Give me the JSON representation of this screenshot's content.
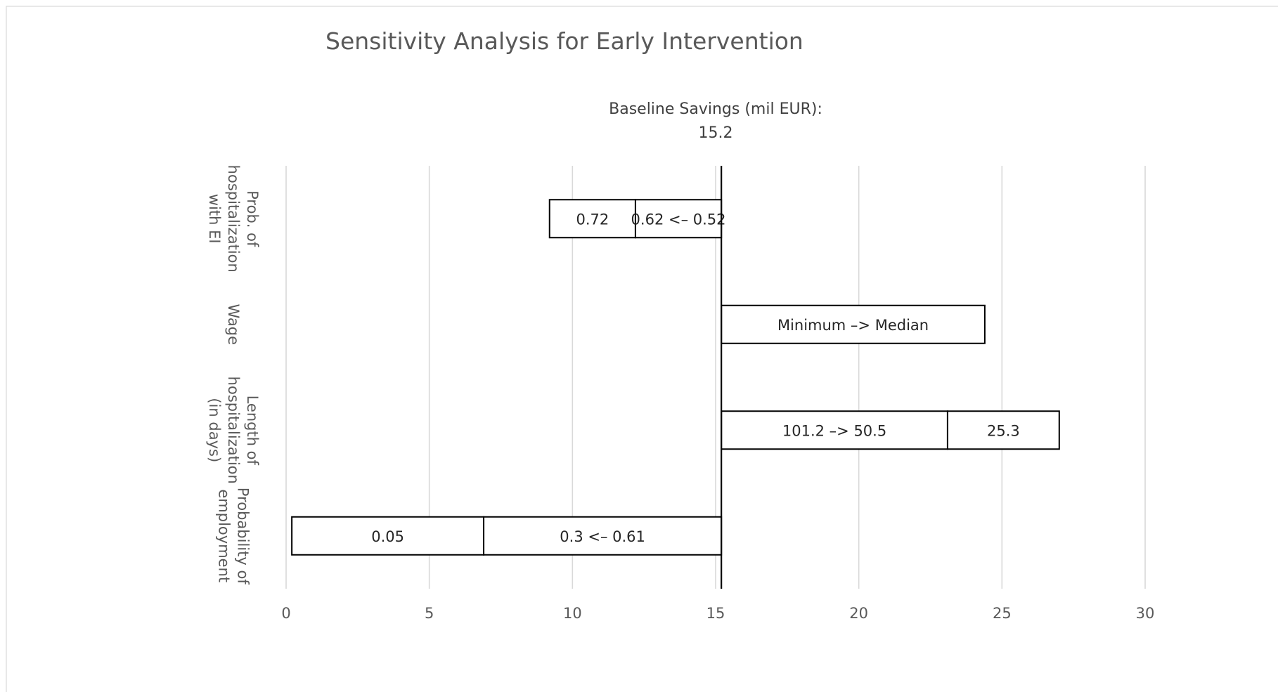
{
  "chart_data": {
    "type": "bar",
    "orientation": "horizontal",
    "title": "Sensitivity Analysis for Early Intervention",
    "annotation": {
      "line1": "Baseline Savings (mil EUR):",
      "line2": "15.2"
    },
    "baseline": 15.2,
    "xlim": [
      0,
      30
    ],
    "x_ticks": [
      0,
      5,
      10,
      15,
      20,
      25,
      30
    ],
    "x_tick_labels": [
      "0",
      "5",
      "10",
      "15",
      "20",
      "25",
      "30"
    ],
    "grid": true,
    "categories": [
      {
        "label_lines": [
          "Prob. of",
          "hospitalization",
          "with EI"
        ],
        "segments": [
          {
            "start": 9.2,
            "end": 12.2,
            "label": "0.72"
          },
          {
            "start": 12.2,
            "end": 15.2,
            "label": "0.62 <– 0.52"
          }
        ]
      },
      {
        "label_lines": [
          "Wage"
        ],
        "segments": [
          {
            "start": 15.2,
            "end": 24.4,
            "label": "Minimum –> Median"
          }
        ]
      },
      {
        "label_lines": [
          "Length of",
          "hospitalization",
          "(in days)"
        ],
        "segments": [
          {
            "start": 15.2,
            "end": 23.1,
            "label": "101.2 –> 50.5"
          },
          {
            "start": 23.1,
            "end": 27.0,
            "label": "25.3"
          }
        ]
      },
      {
        "label_lines": [
          "Probability of",
          "employment"
        ],
        "segments": [
          {
            "start": 0.2,
            "end": 6.9,
            "label": "0.05"
          },
          {
            "start": 6.9,
            "end": 15.2,
            "label": "0.3 <– 0.61"
          }
        ]
      }
    ]
  }
}
